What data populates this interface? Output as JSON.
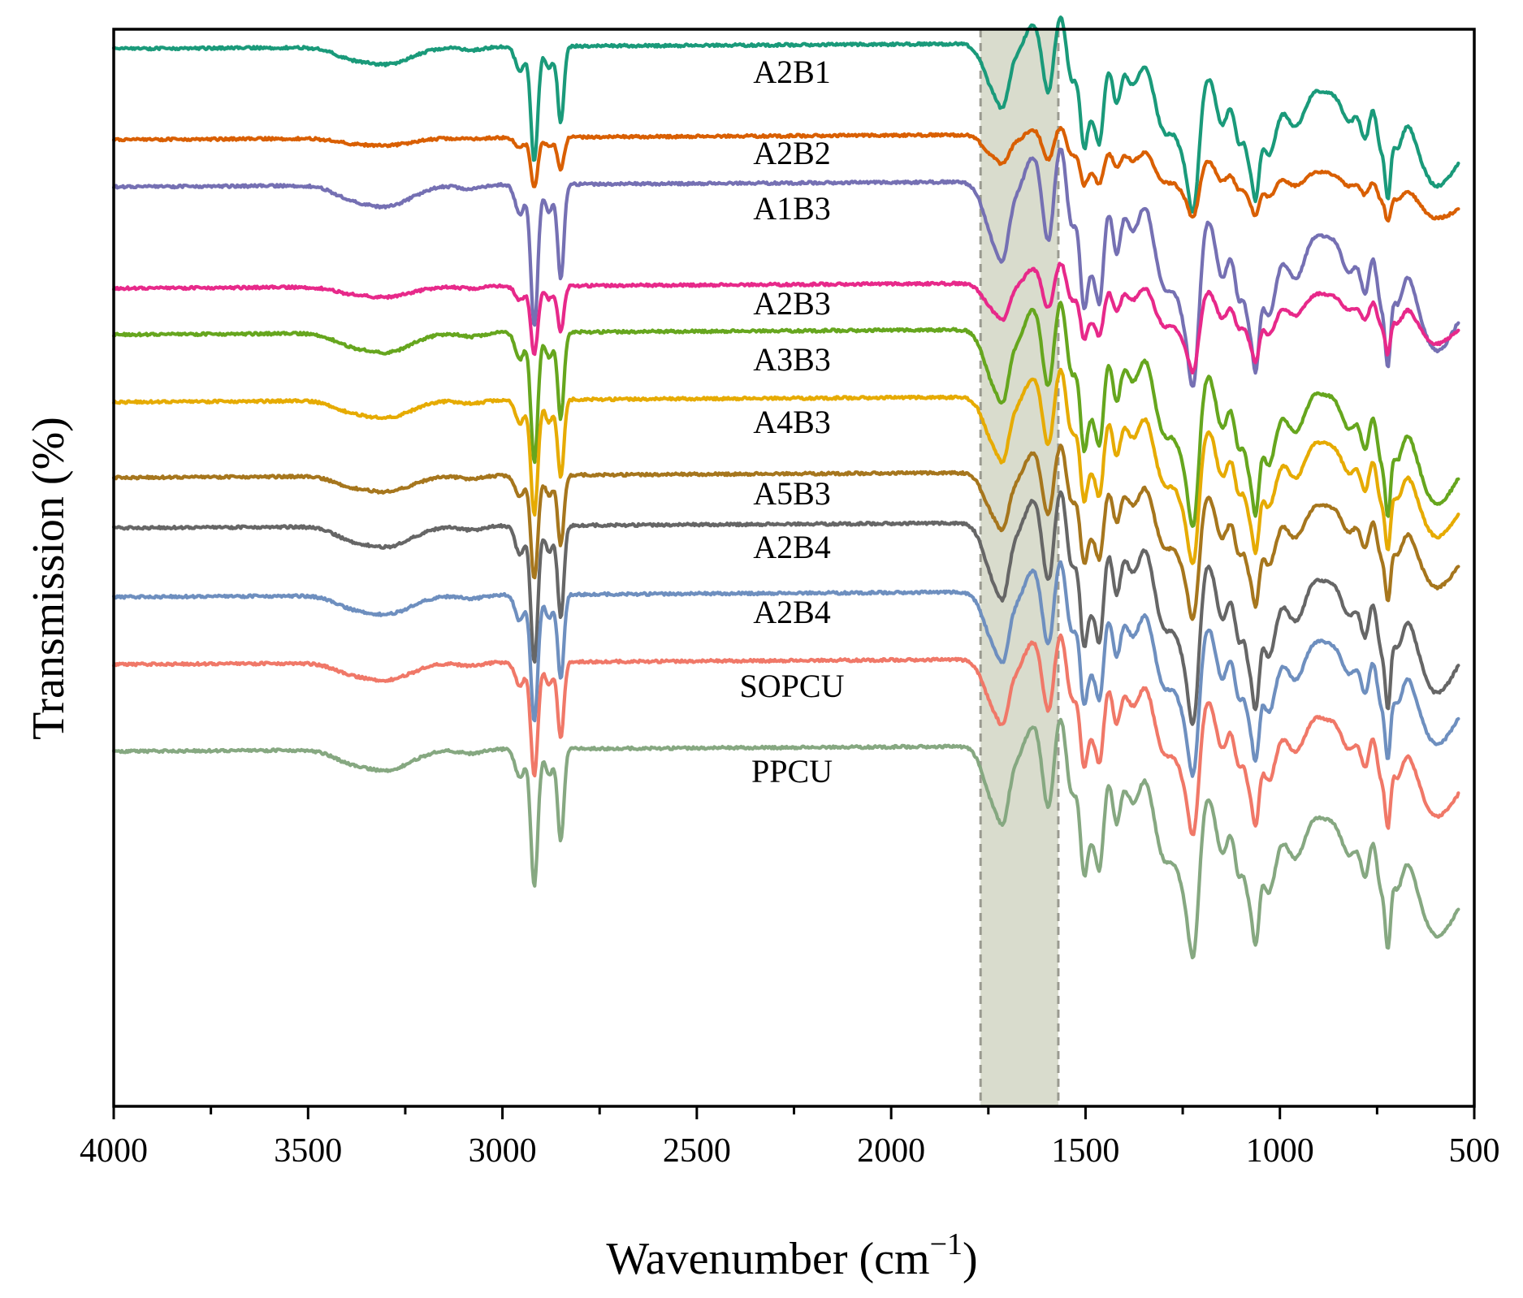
{
  "chart_data": {
    "type": "line",
    "title": "",
    "xlabel": "Wavenumber (cm",
    "xlabel_sup": "−1",
    "xlabel_close": ")",
    "ylabel": "Transmission (%)",
    "xlim": [
      4000,
      500
    ],
    "x_ticks": [
      4000,
      3500,
      3000,
      2500,
      2000,
      1500,
      1000,
      500
    ],
    "x_tick_labels": [
      "4000",
      "3500",
      "3000",
      "2500",
      "2000",
      "1500",
      "1000",
      "500"
    ],
    "y_axis": "arbitrary units, stacked offsets, no tick labels",
    "highlight_band": {
      "x_range": [
        1770,
        1570
      ],
      "color": "#d9dccd",
      "edge_color": "#9a9a90"
    },
    "series": [
      {
        "name": "A2B1",
        "color": "#1a9a7a",
        "baseline": 60,
        "depth": 1.05,
        "end": 148
      },
      {
        "name": "A2B2",
        "color": "#d95f02",
        "baseline": 172,
        "depth": 0.45,
        "end": 250
      },
      {
        "name": "A1B3",
        "color": "#7570b3",
        "baseline": 230,
        "depth": 1.3,
        "end": 325
      },
      {
        "name": "A2B3",
        "color": "#e7298a",
        "baseline": 355,
        "depth": 0.62,
        "end": 385
      },
      {
        "name": "A3B3",
        "color": "#66a61e",
        "baseline": 412,
        "depth": 1.18,
        "end": 527
      },
      {
        "name": "A4B3",
        "color": "#e6ab02",
        "baseline": 495,
        "depth": 1.05,
        "end": 580
      },
      {
        "name": "A5B3",
        "color": "#a6761d",
        "baseline": 588,
        "depth": 0.95,
        "end": 652
      },
      {
        "name": "A2B4",
        "color": "#666666",
        "baseline": 650,
        "depth": 1.25,
        "end": 752
      },
      {
        "name": "A2B4",
        "color": "#6e8fbf",
        "baseline": 735,
        "depth": 1.15,
        "end": 825
      },
      {
        "name": "SOPCU",
        "color": "#f07868",
        "baseline": 818,
        "depth": 1.05,
        "end": 925
      },
      {
        "name": "PPCU",
        "color": "#86a881",
        "baseline": 925,
        "depth": 1.25,
        "end": 1052
      }
    ]
  }
}
